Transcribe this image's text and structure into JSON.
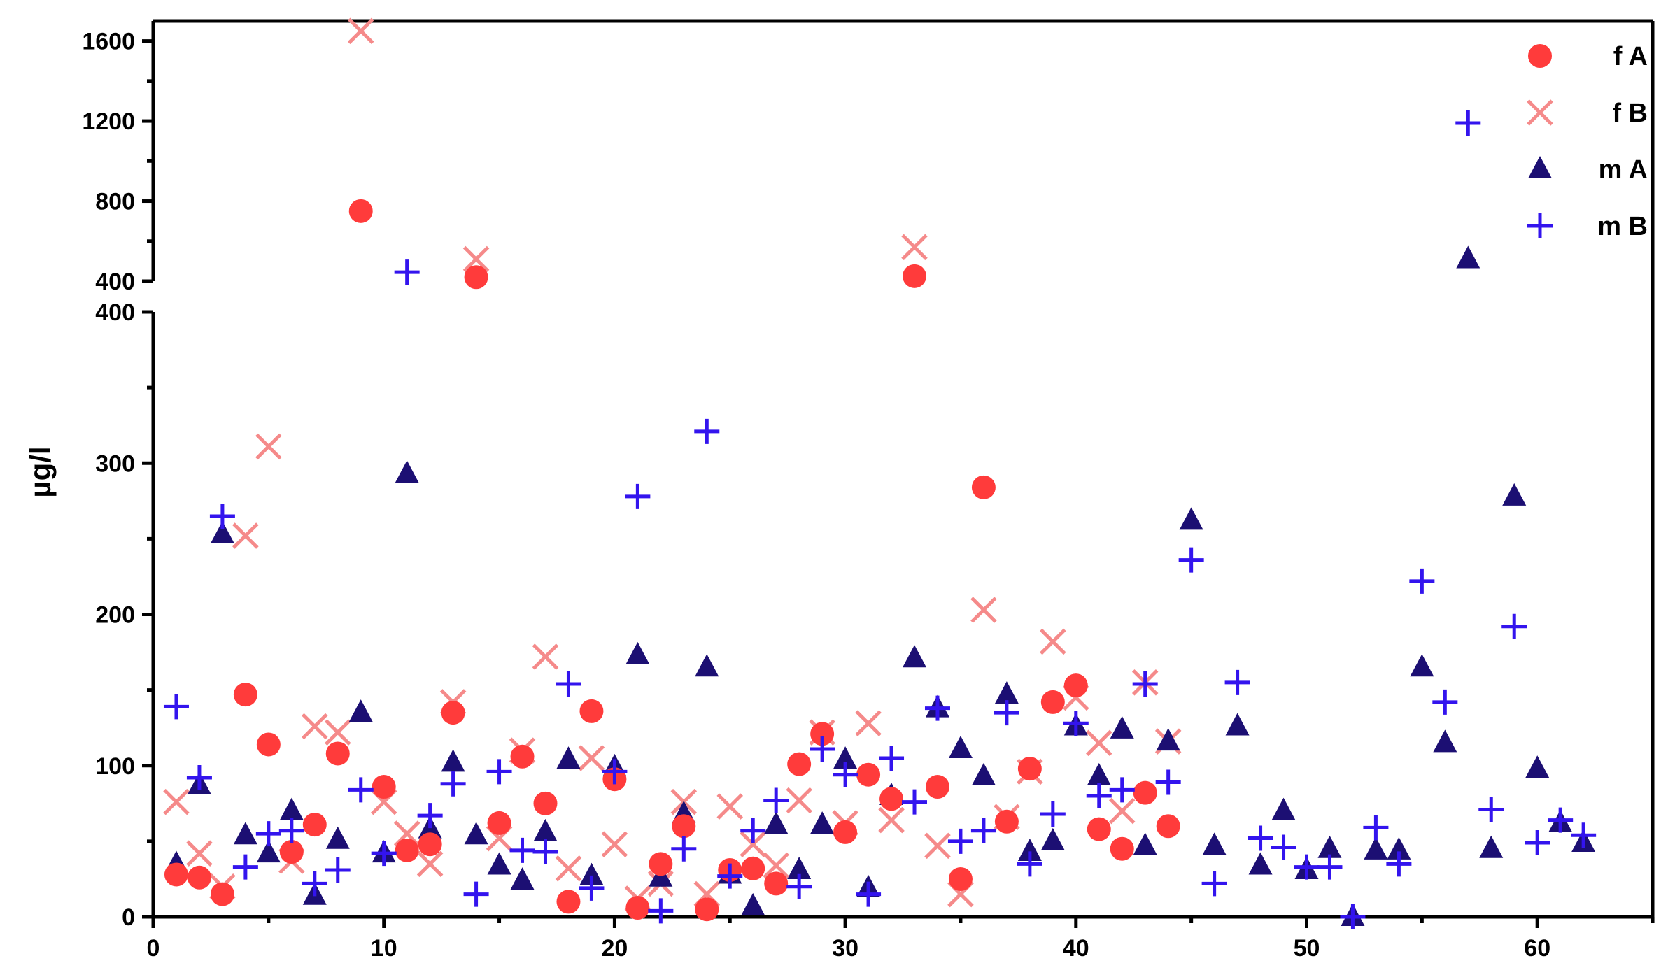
{
  "chart_data": {
    "type": "scatter",
    "title": "",
    "xlabel": "",
    "ylabel": "µg/l",
    "xlim": [
      0,
      65
    ],
    "ylim_lower": [
      0,
      400
    ],
    "ylim_upper": [
      400,
      1700
    ],
    "y_axis_break": true,
    "grid": false,
    "legend_position": "top-right",
    "x_ticks": [
      0,
      10,
      20,
      30,
      40,
      50,
      60
    ],
    "y_ticks_lower": [
      0,
      100,
      200,
      300,
      400
    ],
    "y_ticks_upper": [
      400,
      800,
      1200,
      1600
    ],
    "series": [
      {
        "name": "f A",
        "marker": "circle",
        "color": "#ff3b3b",
        "points": [
          [
            1,
            28
          ],
          [
            2,
            26
          ],
          [
            3,
            15
          ],
          [
            4,
            147
          ],
          [
            5,
            114
          ],
          [
            6,
            43
          ],
          [
            7,
            61
          ],
          [
            8,
            108
          ],
          [
            9,
            750
          ],
          [
            10,
            86
          ],
          [
            11,
            44
          ],
          [
            12,
            48
          ],
          [
            13,
            135
          ],
          [
            14,
            420
          ],
          [
            15,
            62
          ],
          [
            16,
            106
          ],
          [
            17,
            75
          ],
          [
            18,
            10
          ],
          [
            19,
            136
          ],
          [
            20,
            91
          ],
          [
            21,
            6
          ],
          [
            22,
            35
          ],
          [
            23,
            60
          ],
          [
            24,
            5
          ],
          [
            25,
            31
          ],
          [
            26,
            32
          ],
          [
            27,
            22
          ],
          [
            28,
            101
          ],
          [
            29,
            121
          ],
          [
            30,
            56
          ],
          [
            31,
            94
          ],
          [
            32,
            78
          ],
          [
            33,
            425
          ],
          [
            34,
            86
          ],
          [
            35,
            25
          ],
          [
            36,
            284
          ],
          [
            37,
            63
          ],
          [
            38,
            98
          ],
          [
            39,
            142
          ],
          [
            40,
            153
          ],
          [
            41,
            58
          ],
          [
            42,
            45
          ],
          [
            43,
            82
          ],
          [
            44,
            60
          ]
        ]
      },
      {
        "name": "f B",
        "marker": "x",
        "color": "#f58a8a",
        "points": [
          [
            1,
            76
          ],
          [
            2,
            42
          ],
          [
            3,
            20
          ],
          [
            4,
            252
          ],
          [
            5,
            311
          ],
          [
            6,
            37
          ],
          [
            7,
            126
          ],
          [
            8,
            122
          ],
          [
            9,
            1650
          ],
          [
            10,
            76
          ],
          [
            11,
            55
          ],
          [
            12,
            35
          ],
          [
            13,
            142
          ],
          [
            14,
            510
          ],
          [
            15,
            52
          ],
          [
            16,
            110
          ],
          [
            17,
            172
          ],
          [
            18,
            32
          ],
          [
            19,
            105
          ],
          [
            20,
            48
          ],
          [
            21,
            12
          ],
          [
            22,
            22
          ],
          [
            23,
            76
          ],
          [
            24,
            15
          ],
          [
            25,
            73
          ],
          [
            26,
            48
          ],
          [
            27,
            34
          ],
          [
            28,
            77
          ],
          [
            29,
            122
          ],
          [
            30,
            62
          ],
          [
            31,
            128
          ],
          [
            32,
            64
          ],
          [
            33,
            570
          ],
          [
            34,
            47
          ],
          [
            35,
            15
          ],
          [
            36,
            203
          ],
          [
            37,
            66
          ],
          [
            38,
            96
          ],
          [
            39,
            182
          ],
          [
            40,
            145
          ],
          [
            41,
            115
          ],
          [
            42,
            70
          ],
          [
            43,
            155
          ],
          [
            44,
            116
          ]
        ]
      },
      {
        "name": "m A",
        "marker": "triangle",
        "color": "#1c0f73",
        "points": [
          [
            1,
            35
          ],
          [
            2,
            87
          ],
          [
            3,
            253
          ],
          [
            4,
            54
          ],
          [
            5,
            42
          ],
          [
            6,
            70
          ],
          [
            7,
            14
          ],
          [
            8,
            51
          ],
          [
            9,
            135
          ],
          [
            10,
            42
          ],
          [
            11,
            293
          ],
          [
            12,
            58
          ],
          [
            13,
            102
          ],
          [
            14,
            54
          ],
          [
            15,
            34
          ],
          [
            16,
            24
          ],
          [
            17,
            56
          ],
          [
            18,
            104
          ],
          [
            19,
            27
          ],
          [
            20,
            99
          ],
          [
            21,
            173
          ],
          [
            22,
            26
          ],
          [
            23,
            68
          ],
          [
            24,
            165
          ],
          [
            25,
            28
          ],
          [
            26,
            7
          ],
          [
            27,
            61
          ],
          [
            28,
            31
          ],
          [
            29,
            61
          ],
          [
            30,
            104
          ],
          [
            31,
            19
          ],
          [
            32,
            80
          ],
          [
            33,
            171
          ],
          [
            34,
            138
          ],
          [
            35,
            111
          ],
          [
            36,
            93
          ],
          [
            37,
            147
          ],
          [
            38,
            43
          ],
          [
            39,
            50
          ],
          [
            40,
            126
          ],
          [
            41,
            93
          ],
          [
            42,
            124
          ],
          [
            43,
            47
          ],
          [
            44,
            116
          ],
          [
            45,
            262
          ],
          [
            46,
            47
          ],
          [
            47,
            126
          ],
          [
            48,
            34
          ],
          [
            49,
            70
          ],
          [
            50,
            31
          ],
          [
            51,
            45
          ],
          [
            52,
            0
          ],
          [
            53,
            44
          ],
          [
            54,
            44
          ],
          [
            55,
            165
          ],
          [
            56,
            115
          ],
          [
            57,
            510
          ],
          [
            58,
            45
          ],
          [
            59,
            278
          ],
          [
            60,
            98
          ],
          [
            61,
            62
          ],
          [
            62,
            49
          ]
        ]
      },
      {
        "name": "m B",
        "marker": "plus",
        "color": "#3314ee",
        "points": [
          [
            1,
            139
          ],
          [
            2,
            92
          ],
          [
            3,
            265
          ],
          [
            4,
            33
          ],
          [
            5,
            55
          ],
          [
            6,
            57
          ],
          [
            7,
            22
          ],
          [
            8,
            31
          ],
          [
            9,
            84
          ],
          [
            10,
            42
          ],
          [
            11,
            445
          ],
          [
            12,
            67
          ],
          [
            13,
            88
          ],
          [
            14,
            15
          ],
          [
            15,
            96
          ],
          [
            16,
            44
          ],
          [
            17,
            43
          ],
          [
            18,
            154
          ],
          [
            19,
            19
          ],
          [
            20,
            96
          ],
          [
            21,
            278
          ],
          [
            22,
            4
          ],
          [
            23,
            45
          ],
          [
            24,
            321
          ],
          [
            25,
            27
          ],
          [
            26,
            57
          ],
          [
            27,
            77
          ],
          [
            28,
            20
          ],
          [
            29,
            111
          ],
          [
            30,
            94
          ],
          [
            31,
            15
          ],
          [
            32,
            105
          ],
          [
            33,
            76
          ],
          [
            34,
            138
          ],
          [
            35,
            50
          ],
          [
            36,
            57
          ],
          [
            37,
            135
          ],
          [
            38,
            35
          ],
          [
            39,
            68
          ],
          [
            40,
            128
          ],
          [
            41,
            80
          ],
          [
            42,
            84
          ],
          [
            43,
            154
          ],
          [
            44,
            89
          ],
          [
            45,
            236
          ],
          [
            46,
            22
          ],
          [
            47,
            155
          ],
          [
            48,
            52
          ],
          [
            49,
            46
          ],
          [
            50,
            33
          ],
          [
            51,
            33
          ],
          [
            52,
            0
          ],
          [
            53,
            59
          ],
          [
            54,
            35
          ],
          [
            55,
            222
          ],
          [
            56,
            142
          ],
          [
            57,
            1190
          ],
          [
            58,
            71
          ],
          [
            59,
            192
          ],
          [
            60,
            49
          ],
          [
            61,
            64
          ],
          [
            62,
            54
          ]
        ]
      }
    ]
  }
}
